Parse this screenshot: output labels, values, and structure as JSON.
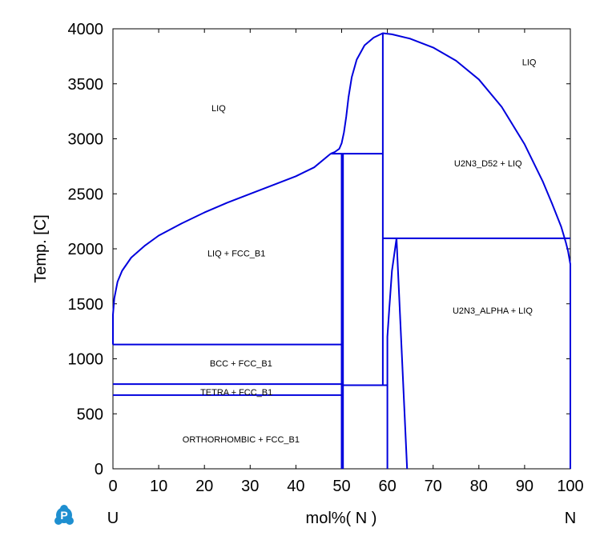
{
  "chart_data": {
    "type": "line",
    "title": "",
    "xlabel": "mol%( N )",
    "ylabel": "Temp. [C]",
    "x_left_label": "U",
    "x_right_label": "N",
    "xlim": [
      0,
      100
    ],
    "ylim": [
      0,
      4000
    ],
    "xticks": [
      0,
      10,
      20,
      30,
      40,
      50,
      60,
      70,
      80,
      90,
      100
    ],
    "yticks": [
      0,
      500,
      1000,
      1500,
      2000,
      2500,
      3000,
      3500,
      4000
    ],
    "line_color": "#0000dd",
    "grid": false,
    "region_labels": [
      {
        "text": "LIQ",
        "x": 23.1,
        "y": 3280
      },
      {
        "text": "LIQ",
        "x": 91.0,
        "y": 3700
      },
      {
        "text": "U2N3_D52 + LIQ",
        "x": 82.0,
        "y": 2780
      },
      {
        "text": "LIQ + FCC_B1",
        "x": 27.0,
        "y": 1960
      },
      {
        "text": "U2N3_ALPHA + LIQ",
        "x": 83.0,
        "y": 1440
      },
      {
        "text": "BCC + FCC_B1",
        "x": 28.0,
        "y": 960
      },
      {
        "text": "TETRA + FCC_B1",
        "x": 27.0,
        "y": 700
      },
      {
        "text": "ORTHORHOMBIC + FCC_B1",
        "x": 28.0,
        "y": 270
      }
    ],
    "series": [
      {
        "values": [
          [
            0,
            1130
          ],
          [
            0,
            1400
          ],
          [
            0.3,
            1550
          ],
          [
            1,
            1700
          ],
          [
            2,
            1800
          ],
          [
            4,
            1920
          ],
          [
            7,
            2030
          ],
          [
            10,
            2120
          ],
          [
            15,
            2230
          ],
          [
            20,
            2330
          ],
          [
            25,
            2420
          ],
          [
            30,
            2500
          ],
          [
            35,
            2580
          ],
          [
            40,
            2660
          ],
          [
            44,
            2740
          ],
          [
            47.6,
            2865
          ]
        ]
      },
      {
        "values": [
          [
            47.6,
            2865
          ],
          [
            48.5,
            2880
          ],
          [
            49.5,
            2910
          ],
          [
            50,
            2960
          ],
          [
            50.5,
            3060
          ],
          [
            51,
            3200
          ],
          [
            51.5,
            3380
          ],
          [
            52.2,
            3560
          ],
          [
            53.3,
            3720
          ],
          [
            55,
            3850
          ],
          [
            57,
            3920
          ],
          [
            59,
            3960
          ],
          [
            61,
            3950
          ],
          [
            65,
            3910
          ],
          [
            70,
            3830
          ],
          [
            75,
            3710
          ],
          [
            80,
            3540
          ],
          [
            85,
            3290
          ],
          [
            90,
            2950
          ],
          [
            94,
            2610
          ],
          [
            96,
            2410
          ],
          [
            98,
            2200
          ],
          [
            99,
            2060
          ],
          [
            99.5,
            1980
          ],
          [
            100,
            1860
          ],
          [
            100,
            0
          ]
        ]
      },
      {
        "values": [
          [
            47.6,
            2865
          ],
          [
            59,
            2865
          ]
        ]
      },
      {
        "values": [
          [
            0,
            1130
          ],
          [
            50,
            1130
          ]
        ]
      },
      {
        "values": [
          [
            0,
            770
          ],
          [
            50,
            770
          ]
        ]
      },
      {
        "values": [
          [
            0,
            670
          ],
          [
            50,
            670
          ]
        ]
      },
      {
        "values": [
          [
            50,
            0
          ],
          [
            50,
            2860
          ]
        ]
      },
      {
        "values": [
          [
            50.3,
            0
          ],
          [
            50.3,
            2860
          ]
        ]
      },
      {
        "values": [
          [
            59,
            760
          ],
          [
            59,
            3960
          ]
        ]
      },
      {
        "values": [
          [
            59,
            2095
          ],
          [
            100,
            2095
          ]
        ]
      },
      {
        "values": [
          [
            50,
            760
          ],
          [
            60,
            760
          ]
        ]
      },
      {
        "values": [
          [
            60,
            0
          ],
          [
            60,
            1200
          ],
          [
            60.4,
            1450
          ],
          [
            61,
            1800
          ],
          [
            62,
            2095
          ]
        ]
      },
      {
        "values": [
          [
            62,
            2095
          ],
          [
            64.3,
            0
          ]
        ]
      }
    ]
  }
}
